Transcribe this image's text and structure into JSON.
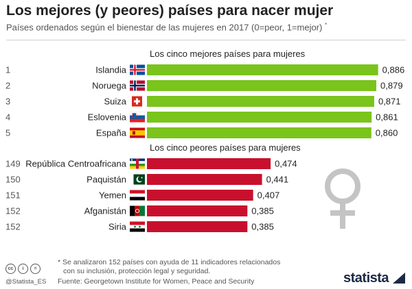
{
  "title": "Los mejores (y peores) países para nacer mujer",
  "subtitle": "Países ordenados según el bienestar de las mujeres en 2017 (0=peor, 1=mejor)",
  "subtitle_mark": "*",
  "chart_data": {
    "type": "bar",
    "orientation": "horizontal",
    "value_range": [
      0,
      1
    ],
    "groups": [
      {
        "heading": "Los cinco mejores países para mujeres",
        "color": "#7ac41c",
        "rows": [
          {
            "rank": "1",
            "country": "Islandia",
            "value": 0.886,
            "label": "0,886",
            "flag": "iceland-flag-icon"
          },
          {
            "rank": "2",
            "country": "Noruega",
            "value": 0.879,
            "label": "0,879",
            "flag": "norway-flag-icon"
          },
          {
            "rank": "3",
            "country": "Suiza",
            "value": 0.871,
            "label": "0,871",
            "flag": "switzerland-flag-icon"
          },
          {
            "rank": "4",
            "country": "Eslovenia",
            "value": 0.861,
            "label": "0,861",
            "flag": "slovenia-flag-icon"
          },
          {
            "rank": "5",
            "country": "España",
            "value": 0.86,
            "label": "0,860",
            "flag": "spain-flag-icon"
          }
        ]
      },
      {
        "heading": "Los cinco peores países para mujeres",
        "color": "#c8102e",
        "rows": [
          {
            "rank": "149",
            "country": "República Centroafricana",
            "value": 0.474,
            "label": "0,474",
            "flag": "central-african-republic-flag-icon"
          },
          {
            "rank": "150",
            "country": "Paquistán",
            "value": 0.441,
            "label": "0,441",
            "flag": "pakistan-flag-icon"
          },
          {
            "rank": "151",
            "country": "Yemen",
            "value": 0.407,
            "label": "0,407",
            "flag": "yemen-flag-icon"
          },
          {
            "rank": "152",
            "country": "Afganistán",
            "value": 0.385,
            "label": "0,385",
            "flag": "afghanistan-flag-icon"
          },
          {
            "rank": "152",
            "country": "Siria",
            "value": 0.385,
            "label": "0,385",
            "flag": "syria-flag-icon"
          }
        ]
      }
    ]
  },
  "footnote_line1": "* Se analizaron 152 países con ayuda de 11 indicadores relacionados",
  "footnote_line2": "con su inclusión, protección legal y seguridad.",
  "source": "Fuente: Georgetown Institute for Women, Peace and Security",
  "license_icons": [
    {
      "name": "cc-icon",
      "label": "cc"
    },
    {
      "name": "attribution-icon",
      "label": "i"
    },
    {
      "name": "equals-icon",
      "label": "="
    }
  ],
  "handle": "@Statista_ES",
  "logo": "statista",
  "decor_icon": "female-symbol-icon"
}
